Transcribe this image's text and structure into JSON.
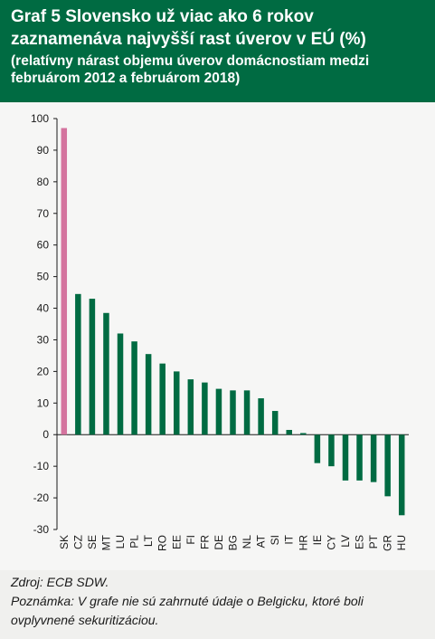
{
  "header": {
    "title": "Graf 5 Slovensko už viac ako 6 rokov zaznamenáva najvyšší rast úverov v EÚ (%)",
    "subtitle": "(relatívny nárast objemu úverov domácnostiam medzi februárom 2012 a februárom 2018)"
  },
  "footer": {
    "source": "Zdroj: ECB SDW.",
    "note": "Poznámka: V grafe nie sú zahrnuté údaje o Belgicku, ktoré boli ovplyvnené sekuritizáciou."
  },
  "colors": {
    "highlight": "#d4739e",
    "bar": "#006b42",
    "header_bg": "#006b42"
  },
  "chart_data": {
    "type": "bar",
    "categories": [
      "SK",
      "CZ",
      "SE",
      "MT",
      "LU",
      "PL",
      "LT",
      "RO",
      "EE",
      "FI",
      "FR",
      "DE",
      "BG",
      "NL",
      "AT",
      "SI",
      "IT",
      "HR",
      "IE",
      "CY",
      "LV",
      "ES",
      "PT",
      "GR",
      "HU"
    ],
    "values": [
      97,
      44.5,
      43,
      38.5,
      32,
      29.5,
      25.5,
      22.5,
      20,
      17.5,
      16.5,
      14.5,
      14,
      14,
      11.5,
      7.5,
      1.5,
      0.5,
      -9,
      -10,
      -14.5,
      -14.5,
      -15,
      -19.5,
      -25.5
    ],
    "highlight_index": 0,
    "ylim": [
      -30,
      100
    ],
    "yticks": [
      -30,
      -20,
      -10,
      0,
      10,
      20,
      30,
      40,
      50,
      60,
      70,
      80,
      90,
      100
    ],
    "grid": false,
    "legend": "none",
    "xlabel": "",
    "ylabel": ""
  }
}
